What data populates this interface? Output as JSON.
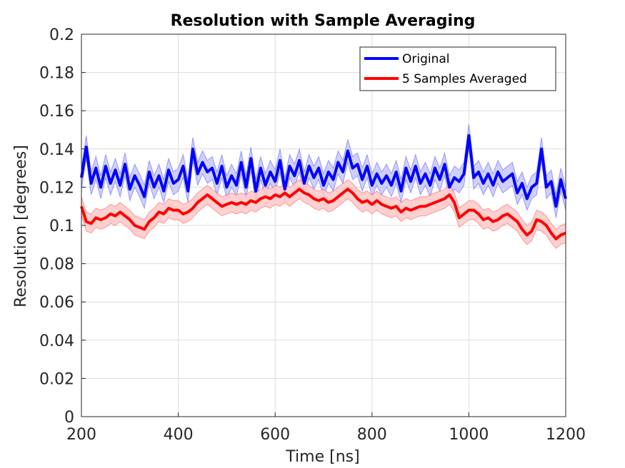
{
  "chart_data": {
    "type": "line",
    "title": "Resolution with Sample Averaging",
    "xlabel": "Time [ns]",
    "ylabel": "Resolution [degrees]",
    "xlim": [
      200,
      1200
    ],
    "ylim": [
      0,
      0.2
    ],
    "x_ticks": [
      "200",
      "400",
      "600",
      "800",
      "1000",
      "1200"
    ],
    "y_ticks": [
      "0",
      "0.02",
      "0.04",
      "0.06",
      "0.08",
      "0.1",
      "0.12",
      "0.14",
      "0.16",
      "0.18",
      "0.2"
    ],
    "grid": true,
    "legend_position": "top-right",
    "series": [
      {
        "name": "Original",
        "color": "#0000ff",
        "band_color": "#c8c8ff",
        "band_halfwidth": 0.006,
        "x": [
          200,
          210,
          220,
          230,
          240,
          250,
          260,
          270,
          280,
          290,
          300,
          310,
          320,
          330,
          340,
          350,
          360,
          370,
          380,
          390,
          400,
          410,
          420,
          430,
          440,
          450,
          460,
          470,
          480,
          490,
          500,
          510,
          520,
          530,
          540,
          550,
          560,
          570,
          580,
          590,
          600,
          610,
          620,
          630,
          640,
          650,
          660,
          670,
          680,
          690,
          700,
          710,
          720,
          730,
          740,
          750,
          760,
          770,
          780,
          790,
          800,
          810,
          820,
          830,
          840,
          850,
          860,
          870,
          880,
          890,
          900,
          910,
          920,
          930,
          940,
          950,
          960,
          970,
          980,
          990,
          1000,
          1010,
          1020,
          1030,
          1040,
          1050,
          1060,
          1070,
          1080,
          1090,
          1100,
          1110,
          1120,
          1130,
          1140,
          1150,
          1160,
          1170,
          1180,
          1190,
          1200
        ],
        "values": [
          0.125,
          0.141,
          0.122,
          0.13,
          0.12,
          0.131,
          0.122,
          0.129,
          0.121,
          0.132,
          0.119,
          0.126,
          0.121,
          0.115,
          0.128,
          0.12,
          0.126,
          0.118,
          0.129,
          0.122,
          0.124,
          0.131,
          0.118,
          0.14,
          0.127,
          0.133,
          0.128,
          0.13,
          0.122,
          0.131,
          0.12,
          0.126,
          0.121,
          0.133,
          0.12,
          0.135,
          0.118,
          0.13,
          0.121,
          0.128,
          0.123,
          0.134,
          0.119,
          0.131,
          0.126,
          0.134,
          0.122,
          0.131,
          0.125,
          0.13,
          0.121,
          0.128,
          0.124,
          0.133,
          0.128,
          0.139,
          0.13,
          0.132,
          0.124,
          0.131,
          0.121,
          0.127,
          0.122,
          0.126,
          0.121,
          0.128,
          0.118,
          0.13,
          0.123,
          0.131,
          0.122,
          0.127,
          0.121,
          0.13,
          0.124,
          0.132,
          0.12,
          0.125,
          0.123,
          0.127,
          0.147,
          0.125,
          0.128,
          0.122,
          0.127,
          0.121,
          0.128,
          0.123,
          0.125,
          0.127,
          0.117,
          0.122,
          0.114,
          0.12,
          0.122,
          0.14,
          0.12,
          0.123,
          0.11,
          0.124,
          0.114
        ]
      },
      {
        "name": "5 Samples Averaged",
        "color": "#ff0000",
        "band_color": "#ffc8c8",
        "band_halfwidth": 0.005,
        "x": [
          200,
          210,
          220,
          230,
          240,
          250,
          260,
          270,
          280,
          290,
          300,
          310,
          320,
          330,
          340,
          350,
          360,
          370,
          380,
          390,
          400,
          410,
          420,
          430,
          440,
          450,
          460,
          470,
          480,
          490,
          500,
          510,
          520,
          530,
          540,
          550,
          560,
          570,
          580,
          590,
          600,
          610,
          620,
          630,
          640,
          650,
          660,
          670,
          680,
          690,
          700,
          710,
          720,
          730,
          740,
          750,
          760,
          770,
          780,
          790,
          800,
          810,
          820,
          830,
          840,
          850,
          860,
          870,
          880,
          890,
          900,
          910,
          920,
          930,
          940,
          950,
          960,
          970,
          980,
          990,
          1000,
          1010,
          1020,
          1030,
          1040,
          1050,
          1060,
          1070,
          1080,
          1090,
          1100,
          1110,
          1120,
          1130,
          1140,
          1150,
          1160,
          1170,
          1180,
          1190,
          1200
        ],
        "values": [
          0.11,
          0.102,
          0.101,
          0.104,
          0.103,
          0.104,
          0.106,
          0.105,
          0.107,
          0.105,
          0.103,
          0.1,
          0.099,
          0.098,
          0.102,
          0.104,
          0.107,
          0.106,
          0.109,
          0.108,
          0.108,
          0.106,
          0.107,
          0.109,
          0.112,
          0.114,
          0.116,
          0.114,
          0.112,
          0.11,
          0.111,
          0.112,
          0.111,
          0.112,
          0.111,
          0.113,
          0.112,
          0.114,
          0.115,
          0.114,
          0.116,
          0.115,
          0.117,
          0.115,
          0.117,
          0.119,
          0.117,
          0.116,
          0.114,
          0.113,
          0.114,
          0.112,
          0.113,
          0.115,
          0.117,
          0.119,
          0.117,
          0.114,
          0.112,
          0.113,
          0.111,
          0.113,
          0.111,
          0.11,
          0.109,
          0.11,
          0.107,
          0.109,
          0.108,
          0.109,
          0.11,
          0.11,
          0.111,
          0.112,
          0.113,
          0.114,
          0.116,
          0.112,
          0.104,
          0.106,
          0.108,
          0.108,
          0.106,
          0.103,
          0.104,
          0.102,
          0.103,
          0.105,
          0.106,
          0.104,
          0.102,
          0.098,
          0.095,
          0.097,
          0.103,
          0.102,
          0.1,
          0.096,
          0.093,
          0.095,
          0.096
        ]
      }
    ]
  }
}
